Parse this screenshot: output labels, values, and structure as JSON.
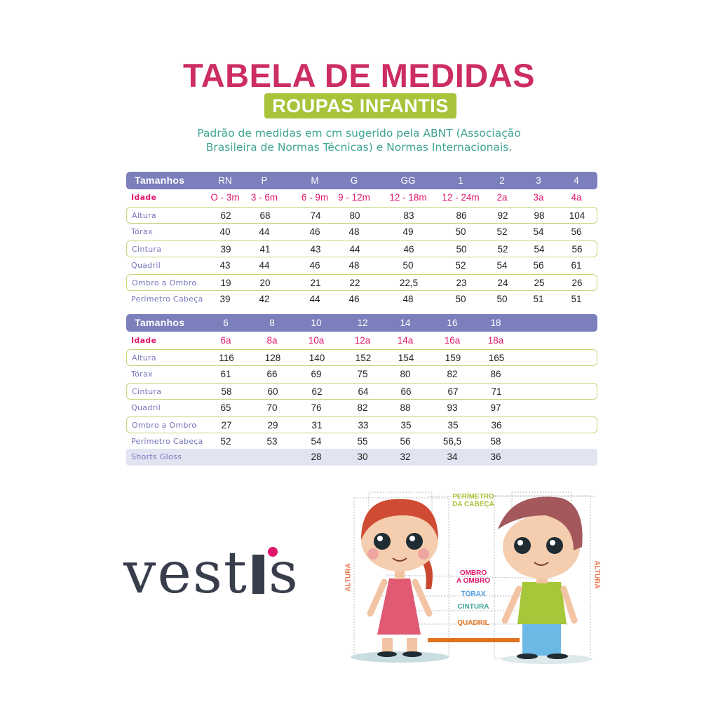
{
  "header": {
    "title": "TABELA DE MEDIDAS",
    "badge": "ROUPAS INFANTIS",
    "subtitle_line1": "Padrão de medidas em cm sugerido pela ABNT (Associação",
    "subtitle_line2": "Brasileira de Normas Técnicas) e Normas Internacionais."
  },
  "colors": {
    "title": "#cc2d62",
    "badge": "#a8c43a",
    "subtitle": "#3fa494",
    "table_header": "#7b7fbc",
    "age": "#e0176b",
    "row_label": "#7677bd",
    "row_border": "#c4d77a"
  },
  "table1": {
    "header": {
      "label": "Tamanhos",
      "cells": [
        "RN",
        "P",
        "M",
        "G",
        "GG",
        "1",
        "2",
        "3",
        "4"
      ]
    },
    "rows": [
      {
        "label": "Idade",
        "cells": [
          "O - 3m",
          "3 - 6m",
          "6 - 9m",
          "9 - 12m",
          "12 - 18m",
          "12 - 24m",
          "2a",
          "3a",
          "4a"
        ]
      },
      {
        "label": "Altura",
        "cells": [
          "62",
          "68",
          "74",
          "80",
          "83",
          "86",
          "92",
          "98",
          "104"
        ]
      },
      {
        "label": "Tórax",
        "cells": [
          "40",
          "44",
          "46",
          "48",
          "49",
          "50",
          "52",
          "54",
          "56"
        ]
      },
      {
        "label": "Cintura",
        "cells": [
          "39",
          "41",
          "43",
          "44",
          "46",
          "50",
          "52",
          "54",
          "56"
        ]
      },
      {
        "label": "Quadril",
        "cells": [
          "43",
          "44",
          "46",
          "48",
          "50",
          "52",
          "54",
          "56",
          "61"
        ]
      },
      {
        "label": "Ombro a Ombro",
        "cells": [
          "19",
          "20",
          "21",
          "22",
          "22,5",
          "23",
          "24",
          "25",
          "26"
        ]
      },
      {
        "label": "Perímetro Cabeça",
        "cells": [
          "39",
          "42",
          "44",
          "46",
          "48",
          "50",
          "50",
          "51",
          "51"
        ]
      }
    ]
  },
  "table2": {
    "header": {
      "label": "Tamanhos",
      "cells": [
        "6",
        "8",
        "10",
        "12",
        "14",
        "16",
        "18"
      ]
    },
    "rows": [
      {
        "label": "Idade",
        "cells": [
          "6a",
          "8a",
          "10a",
          "12a",
          "14a",
          "16a",
          "18a"
        ]
      },
      {
        "label": "Altura",
        "cells": [
          "116",
          "128",
          "140",
          "152",
          "154",
          "159",
          "165"
        ]
      },
      {
        "label": "Tórax",
        "cells": [
          "61",
          "66",
          "69",
          "75",
          "80",
          "82",
          "86"
        ]
      },
      {
        "label": "Cintura",
        "cells": [
          "58",
          "60",
          "62",
          "64",
          "66",
          "67",
          "71"
        ]
      },
      {
        "label": "Quadril",
        "cells": [
          "65",
          "70",
          "76",
          "82",
          "88",
          "93",
          "97"
        ]
      },
      {
        "label": "Ombro a Ombro",
        "cells": [
          "27",
          "29",
          "31",
          "33",
          "35",
          "35",
          "36"
        ]
      },
      {
        "label": "Perímetro Cabeça",
        "cells": [
          "52",
          "53",
          "54",
          "55",
          "56",
          "56,5",
          "58"
        ]
      },
      {
        "label": "Shorts Gloss",
        "cells": [
          "",
          "",
          "28",
          "30",
          "32",
          "34",
          "36"
        ]
      }
    ]
  },
  "logo": {
    "text": "vestis"
  },
  "illustration": {
    "perimetro_line1": "PERÍMETRO",
    "perimetro_line2": "DA CABEÇA",
    "ombro_line1": "OMBRO",
    "ombro_line2": "A OMBRO",
    "torax": "TÓRAX",
    "cintura": "CINTURA",
    "quadril": "QUADRIL",
    "altura_left": "ALTURA",
    "altura_right": "ALTURA"
  }
}
